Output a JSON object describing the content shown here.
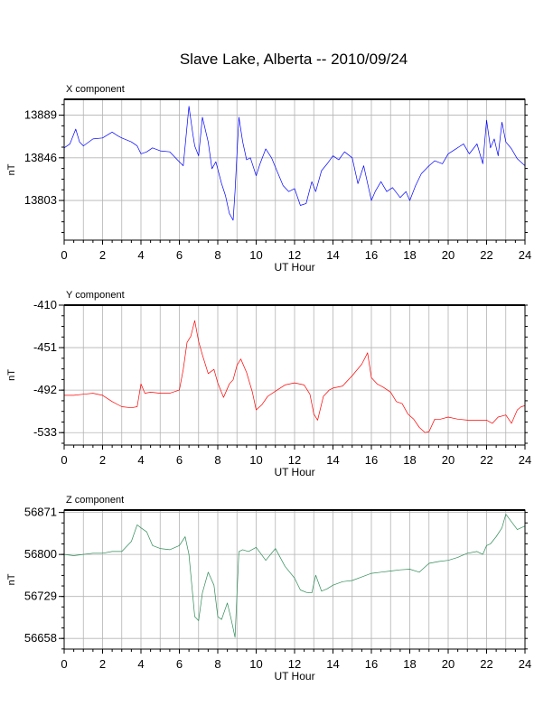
{
  "title": "Slave Lake, Alberta -- 2010/09/24",
  "chart_data": [
    {
      "type": "line",
      "title": "X component",
      "xlabel": "UT Hour",
      "ylabel": "nT",
      "xlim": [
        0,
        24
      ],
      "ylim": [
        13763,
        13905
      ],
      "xticks": [
        0,
        2,
        4,
        6,
        8,
        10,
        12,
        14,
        16,
        18,
        20,
        22,
        24
      ],
      "yticks": [
        13803,
        13846,
        13889
      ],
      "color": "#0000ff",
      "series": [
        {
          "x": [
            0,
            0.3,
            0.6,
            0.8,
            1,
            1.5,
            2,
            2.5,
            2.8,
            3,
            3.5,
            3.8,
            4,
            4.3,
            4.6,
            5,
            5.5,
            6,
            6.2,
            6.5,
            6.7,
            6.8,
            7,
            7.2,
            7.5,
            7.7,
            7.9,
            8.2,
            8.4,
            8.6,
            8.8,
            8.9,
            9.1,
            9.3,
            9.5,
            9.7,
            10,
            10.2,
            10.5,
            10.8,
            11.1,
            11.4,
            11.7,
            12,
            12.3,
            12.6,
            12.9,
            13.1,
            13.4,
            13.7,
            14,
            14.3,
            14.6,
            15,
            15.3,
            15.6,
            16,
            16.2,
            16.5,
            16.8,
            17.1,
            17.5,
            17.8,
            18,
            18.3,
            18.6,
            19,
            19.3,
            19.7,
            20,
            20.4,
            20.8,
            21.1,
            21.5,
            21.8,
            22,
            22.2,
            22.4,
            22.6,
            22.8,
            23,
            23.3,
            23.6,
            24
          ],
          "values": [
            13856,
            13860,
            13875,
            13862,
            13858,
            13865,
            13866,
            13872,
            13868,
            13866,
            13862,
            13858,
            13850,
            13852,
            13856,
            13853,
            13852,
            13842,
            13838,
            13898,
            13870,
            13858,
            13848,
            13887,
            13862,
            13835,
            13842,
            13820,
            13808,
            13790,
            13783,
            13812,
            13887,
            13862,
            13844,
            13846,
            13828,
            13840,
            13855,
            13846,
            13832,
            13818,
            13812,
            13815,
            13798,
            13800,
            13822,
            13812,
            13833,
            13840,
            13848,
            13844,
            13852,
            13846,
            13820,
            13838,
            13803,
            13812,
            13822,
            13812,
            13816,
            13806,
            13812,
            13803,
            13818,
            13830,
            13838,
            13843,
            13840,
            13850,
            13855,
            13860,
            13850,
            13860,
            13840,
            13884,
            13856,
            13865,
            13848,
            13882,
            13862,
            13855,
            13845,
            13838
          ]
        }
      ]
    },
    {
      "type": "line",
      "title": "Y component",
      "xlabel": "UT Hour",
      "ylabel": "nT",
      "xlim": [
        0,
        24
      ],
      "ylim": [
        -545,
        -410
      ],
      "xticks": [
        0,
        2,
        4,
        6,
        8,
        10,
        12,
        14,
        16,
        18,
        20,
        22,
        24
      ],
      "yticks": [
        -410,
        -451,
        -492,
        -533
      ],
      "color": "#ff0000",
      "series": [
        {
          "x": [
            0,
            0.5,
            1,
            1.5,
            2,
            2.5,
            3,
            3.5,
            3.8,
            4,
            4.2,
            4.5,
            5,
            5.5,
            6,
            6.2,
            6.4,
            6.6,
            6.8,
            7,
            7.2,
            7.5,
            7.8,
            8,
            8.3,
            8.6,
            8.8,
            9,
            9.2,
            9.5,
            9.8,
            10,
            10.3,
            10.6,
            11,
            11.5,
            12,
            12.5,
            12.8,
            13,
            13.2,
            13.5,
            13.8,
            14,
            14.5,
            15,
            15.5,
            15.8,
            16,
            16.3,
            16.6,
            17,
            17.3,
            17.6,
            17.9,
            18.2,
            18.5,
            18.8,
            19,
            19.3,
            19.6,
            20,
            20.5,
            21,
            21.5,
            22,
            22.3,
            22.6,
            23,
            23.3,
            23.6,
            23.8,
            24
          ],
          "values": [
            -497,
            -497,
            -496,
            -495,
            -497,
            -503,
            -508,
            -509,
            -508,
            -486,
            -495,
            -494,
            -495,
            -495,
            -492,
            -472,
            -446,
            -440,
            -425,
            -445,
            -458,
            -476,
            -472,
            -485,
            -499,
            -486,
            -482,
            -468,
            -462,
            -475,
            -494,
            -511,
            -506,
            -498,
            -493,
            -487,
            -485,
            -487,
            -496,
            -515,
            -521,
            -498,
            -492,
            -490,
            -488,
            -478,
            -467,
            -456,
            -480,
            -486,
            -489,
            -494,
            -503,
            -505,
            -515,
            -520,
            -528,
            -533,
            -532,
            -520,
            -520,
            -518,
            -520,
            -521,
            -521,
            -521,
            -524,
            -518,
            -516,
            -524,
            -511,
            -508,
            -507
          ]
        }
      ]
    },
    {
      "type": "line",
      "title": "Z component",
      "xlabel": "UT Hour",
      "ylabel": "nT",
      "xlim": [
        0,
        24
      ],
      "ylim": [
        56640,
        56875
      ],
      "xticks": [
        0,
        2,
        4,
        6,
        8,
        10,
        12,
        14,
        16,
        18,
        20,
        22,
        24
      ],
      "yticks": [
        56658,
        56729,
        56800,
        56871
      ],
      "color": "#2e8b57",
      "series": [
        {
          "x": [
            0,
            0.5,
            1,
            1.5,
            2,
            2.5,
            3,
            3.5,
            3.8,
            4,
            4.3,
            4.6,
            5,
            5.5,
            6,
            6.3,
            6.5,
            6.8,
            7,
            7.2,
            7.5,
            7.8,
            8,
            8.2,
            8.5,
            8.7,
            8.9,
            9.1,
            9.3,
            9.6,
            10,
            10.5,
            11,
            11.5,
            12,
            12.3,
            12.6,
            12.9,
            13.1,
            13.4,
            13.7,
            14,
            14.5,
            15,
            15.5,
            16,
            16.5,
            17,
            17.5,
            18,
            18.5,
            19,
            19.5,
            20,
            20.5,
            21,
            21.5,
            21.8,
            22,
            22.2,
            22.5,
            22.8,
            23,
            23.3,
            23.6,
            24
          ],
          "values": [
            56800,
            56798,
            56800,
            56802,
            56802,
            56805,
            56805,
            56822,
            56850,
            56845,
            56838,
            56815,
            56810,
            56808,
            56815,
            56830,
            56800,
            56695,
            56688,
            56735,
            56770,
            56748,
            56695,
            56690,
            56718,
            56690,
            56660,
            56805,
            56808,
            56805,
            56812,
            56790,
            56810,
            56780,
            56760,
            56740,
            56736,
            56735,
            56765,
            56738,
            56742,
            56748,
            56754,
            56756,
            56762,
            56768,
            56770,
            56772,
            56774,
            56775,
            56770,
            56785,
            56788,
            56790,
            56795,
            56802,
            56805,
            56800,
            56815,
            56818,
            56830,
            56845,
            56868,
            56855,
            56842,
            56848
          ]
        }
      ]
    }
  ]
}
